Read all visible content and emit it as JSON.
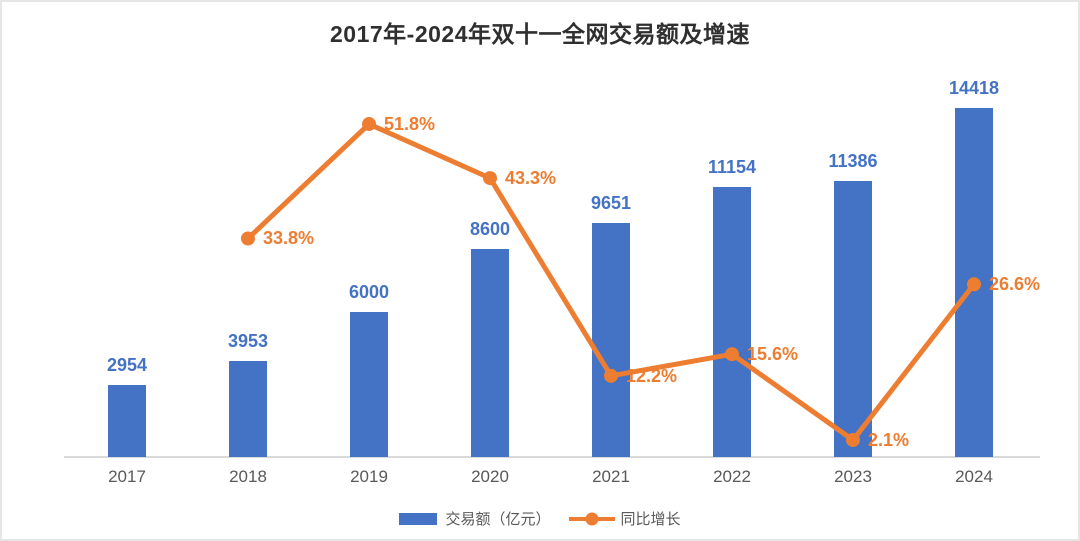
{
  "title": "2017年-2024年双十一全网交易额及增速",
  "colors": {
    "bar": "#4472C4",
    "line": "#ED7D31",
    "title": "#2f2f2f",
    "axis_label": "#595959",
    "axis_line": "#d9d9d9"
  },
  "legend": {
    "volume_label": "交易额（亿元）",
    "growth_label": "同比增长"
  },
  "chart_data": {
    "type": "bar+line",
    "title": "2017年-2024年双十一全网交易额及增速",
    "categories": [
      "2017",
      "2018",
      "2019",
      "2020",
      "2021",
      "2022",
      "2023",
      "2024"
    ],
    "series": [
      {
        "name": "交易额（亿元）",
        "type": "bar",
        "axis": "primary",
        "color": "#4472C4",
        "values": [
          2954,
          3953,
          6000,
          8600,
          9651,
          11154,
          11386,
          14418
        ],
        "labels": [
          "2954",
          "3953",
          "6000",
          "8600",
          "9651",
          "11154",
          "11386",
          "14418"
        ]
      },
      {
        "name": "同比增长",
        "type": "line",
        "axis": "secondary",
        "color": "#ED7D31",
        "values": [
          null,
          33.8,
          51.8,
          43.3,
          12.2,
          15.6,
          2.1,
          26.6
        ],
        "labels": [
          "",
          "33.8%",
          "51.8%",
          "43.3%",
          "12.2%",
          "15.6%",
          "2.1%",
          "26.6%"
        ]
      }
    ],
    "xlabel": "",
    "ylabel": "",
    "y1lim": [
      0,
      16000
    ],
    "y2lim": [
      0,
      60
    ],
    "grid": false,
    "y_axis_visible": false,
    "legend_position": "bottom",
    "data_labels": true
  }
}
